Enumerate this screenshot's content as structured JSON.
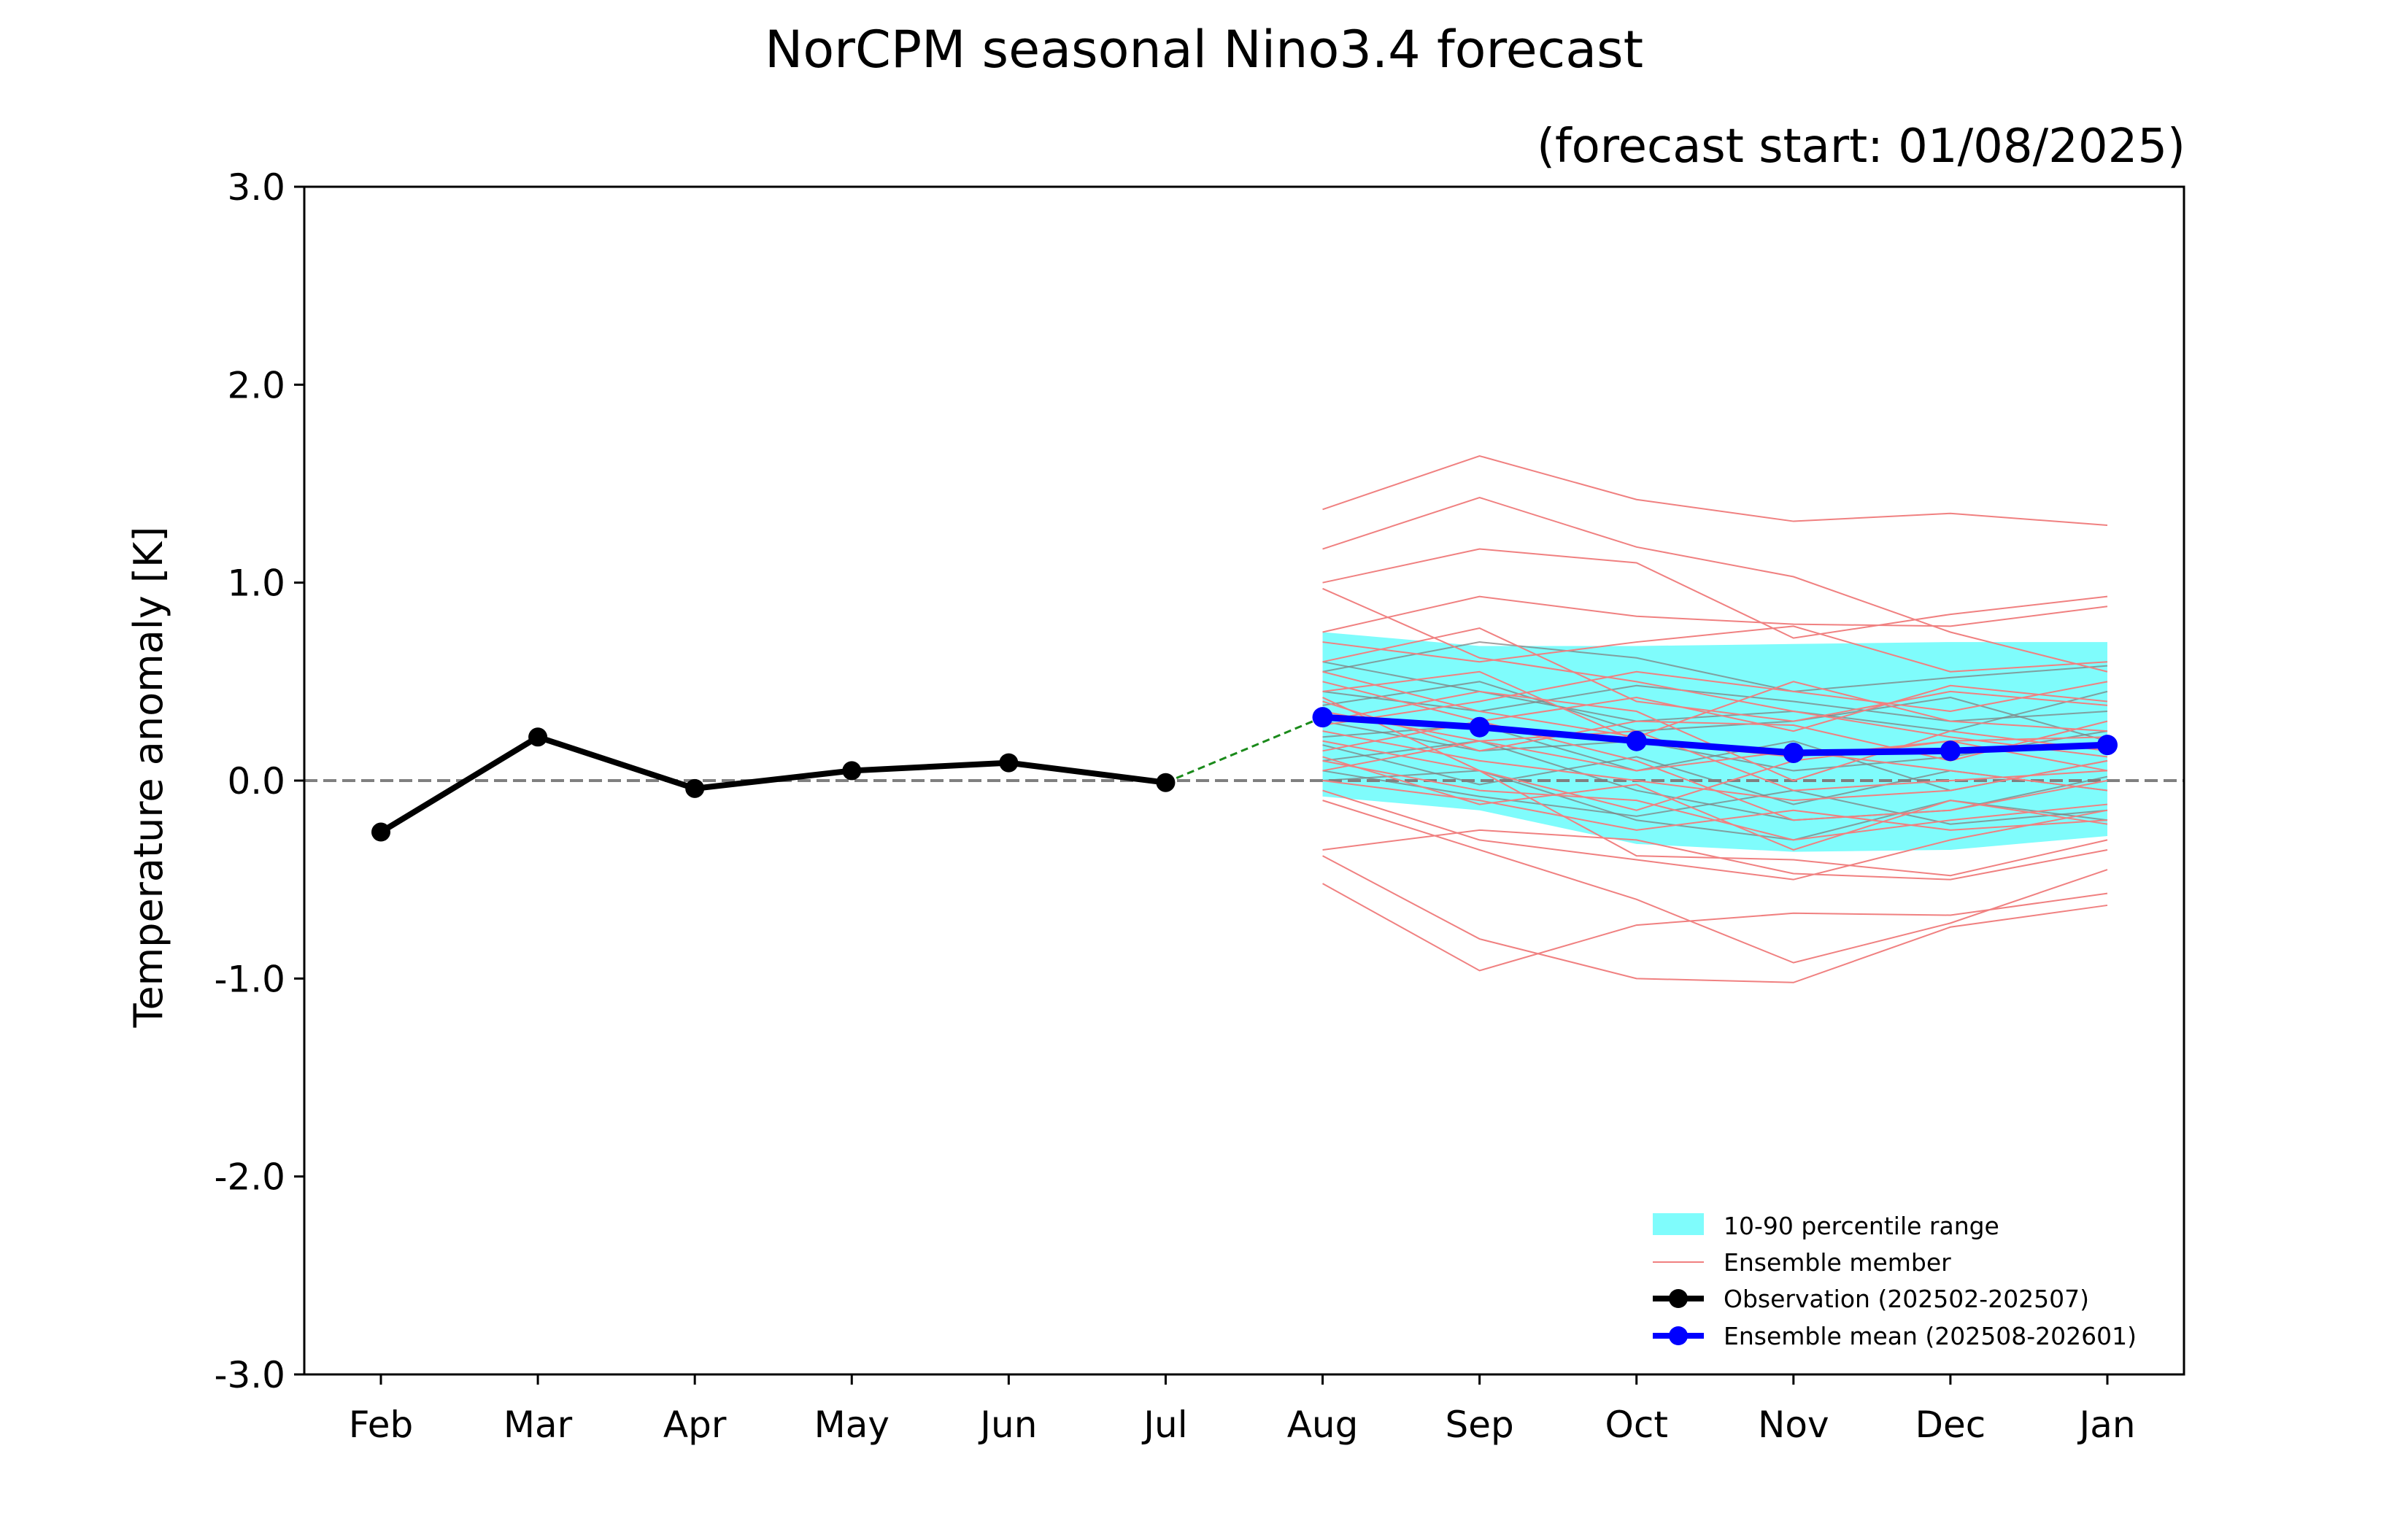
{
  "chart_data": {
    "type": "line",
    "title": "NorCPM seasonal Nino3.4 forecast",
    "subtitle": "(forecast start: 01/08/2025)",
    "xlabel": "",
    "ylabel": "Temperature anomaly [K]",
    "ylim": [
      -3.0,
      3.0
    ],
    "yticks": [
      -3.0,
      -2.0,
      -1.0,
      0.0,
      1.0,
      2.0,
      3.0
    ],
    "ytick_labels": [
      "-3.0",
      "-2.0",
      "-1.0",
      "0.0",
      "1.0",
      "2.0",
      "3.0"
    ],
    "categories": [
      "Feb",
      "Mar",
      "Apr",
      "May",
      "Jun",
      "Jul",
      "Aug",
      "Sep",
      "Oct",
      "Nov",
      "Dec",
      "Jan"
    ],
    "grid": false,
    "zero_line": true,
    "legend_position": "lower-right",
    "colors": {
      "observation": "#000000",
      "ensemble_mean": "#0000ff",
      "ensemble_member": "#f08080",
      "ensemble_member_grey": "#808080",
      "percentile_band": "#7ffcfc",
      "connector": "#1a8a1a",
      "zero_line": "#808080"
    },
    "observation": {
      "name": "Observation (202502-202507)",
      "x": [
        "Feb",
        "Mar",
        "Apr",
        "May",
        "Jun",
        "Jul"
      ],
      "values": [
        -0.26,
        0.22,
        -0.04,
        0.05,
        0.09,
        -0.01
      ]
    },
    "ensemble_mean": {
      "name": "Ensemble mean (202508-202601)",
      "x": [
        "Aug",
        "Sep",
        "Oct",
        "Nov",
        "Dec",
        "Jan"
      ],
      "values": [
        0.32,
        0.27,
        0.2,
        0.14,
        0.15,
        0.18
      ]
    },
    "percentile_range": {
      "name": "10-90 percentile range",
      "x": [
        "Aug",
        "Sep",
        "Oct",
        "Nov",
        "Dec",
        "Jan"
      ],
      "p10": [
        -0.08,
        -0.15,
        -0.32,
        -0.36,
        -0.35,
        -0.28
      ],
      "p90": [
        0.75,
        0.68,
        0.68,
        0.69,
        0.7,
        0.7
      ]
    },
    "ensemble_members_label": "Ensemble member",
    "ensemble_members": [
      [
        1.37,
        1.64,
        1.42,
        1.31,
        1.35,
        1.29
      ],
      [
        1.17,
        1.43,
        1.18,
        1.03,
        0.75,
        0.55
      ],
      [
        1.0,
        1.17,
        1.1,
        0.72,
        0.84,
        0.93
      ],
      [
        0.97,
        0.62,
        0.5,
        0.35,
        0.22,
        0.12
      ],
      [
        0.75,
        0.93,
        0.83,
        0.79,
        0.78,
        0.88
      ],
      [
        0.7,
        0.6,
        0.7,
        0.78,
        0.55,
        0.6
      ],
      [
        0.6,
        0.77,
        0.4,
        0.3,
        0.45,
        0.38
      ],
      [
        0.55,
        0.35,
        0.22,
        0.5,
        0.3,
        0.25
      ],
      [
        0.5,
        0.3,
        0.42,
        0.25,
        0.48,
        0.4
      ],
      [
        0.45,
        0.55,
        0.2,
        0.12,
        0.2,
        0.05
      ],
      [
        0.4,
        0.15,
        0.3,
        0.28,
        0.1,
        0.3
      ],
      [
        0.35,
        0.2,
        0.05,
        0.15,
        0.05,
        -0.05
      ],
      [
        0.3,
        0.45,
        0.35,
        0.0,
        0.25,
        0.15
      ],
      [
        0.25,
        0.1,
        0.0,
        -0.1,
        -0.05,
        0.1
      ],
      [
        0.2,
        0.05,
        -0.15,
        0.1,
        0.2,
        0.22
      ],
      [
        0.15,
        0.3,
        0.1,
        -0.2,
        -0.15,
        0.0
      ],
      [
        0.1,
        -0.05,
        -0.1,
        -0.3,
        -0.2,
        -0.12
      ],
      [
        0.05,
        0.2,
        0.25,
        -0.05,
        0.0,
        0.05
      ],
      [
        0.0,
        -0.1,
        -0.25,
        -0.15,
        -0.25,
        -0.2
      ],
      [
        -0.05,
        -0.3,
        -0.4,
        -0.5,
        -0.3,
        -0.15
      ],
      [
        -0.1,
        -0.35,
        -0.6,
        -0.92,
        -0.72,
        -0.45
      ],
      [
        -0.35,
        -0.25,
        -0.3,
        -0.47,
        -0.5,
        -0.35
      ],
      [
        -0.38,
        -0.8,
        -1.0,
        -1.02,
        -0.74,
        -0.63
      ],
      [
        -0.52,
        -0.96,
        -0.73,
        -0.67,
        -0.68,
        -0.57
      ],
      [
        0.42,
        0.05,
        -0.38,
        -0.4,
        -0.48,
        -0.3
      ],
      [
        0.28,
        0.4,
        0.55,
        0.45,
        0.35,
        0.5
      ],
      [
        0.12,
        -0.12,
        -0.02,
        -0.35,
        -0.1,
        -0.22
      ]
    ],
    "ensemble_members_grey": [
      [
        0.55,
        0.7,
        0.62,
        0.45,
        0.52,
        0.58
      ],
      [
        0.45,
        0.35,
        0.48,
        0.4,
        0.3,
        0.35
      ],
      [
        0.38,
        0.5,
        0.25,
        0.3,
        0.42,
        0.2
      ],
      [
        0.3,
        0.15,
        0.2,
        0.05,
        0.12,
        0.25
      ],
      [
        0.22,
        0.28,
        0.05,
        0.2,
        -0.05,
        0.1
      ],
      [
        0.18,
        -0.02,
        0.12,
        -0.12,
        0.05,
        -0.05
      ],
      [
        0.1,
        0.2,
        -0.05,
        -0.2,
        -0.15,
        0.02
      ],
      [
        0.05,
        -0.08,
        -0.18,
        -0.05,
        -0.22,
        -0.15
      ],
      [
        0.0,
        0.05,
        -0.2,
        -0.3,
        -0.1,
        -0.2
      ],
      [
        0.6,
        0.45,
        0.3,
        0.35,
        0.25,
        0.45
      ]
    ],
    "legend": {
      "percentile_label": "10-90 percentile range",
      "member_label": "Ensemble member",
      "observation_label": "Observation (202502-202507)",
      "mean_label": "Ensemble mean (202508-202601)"
    }
  }
}
